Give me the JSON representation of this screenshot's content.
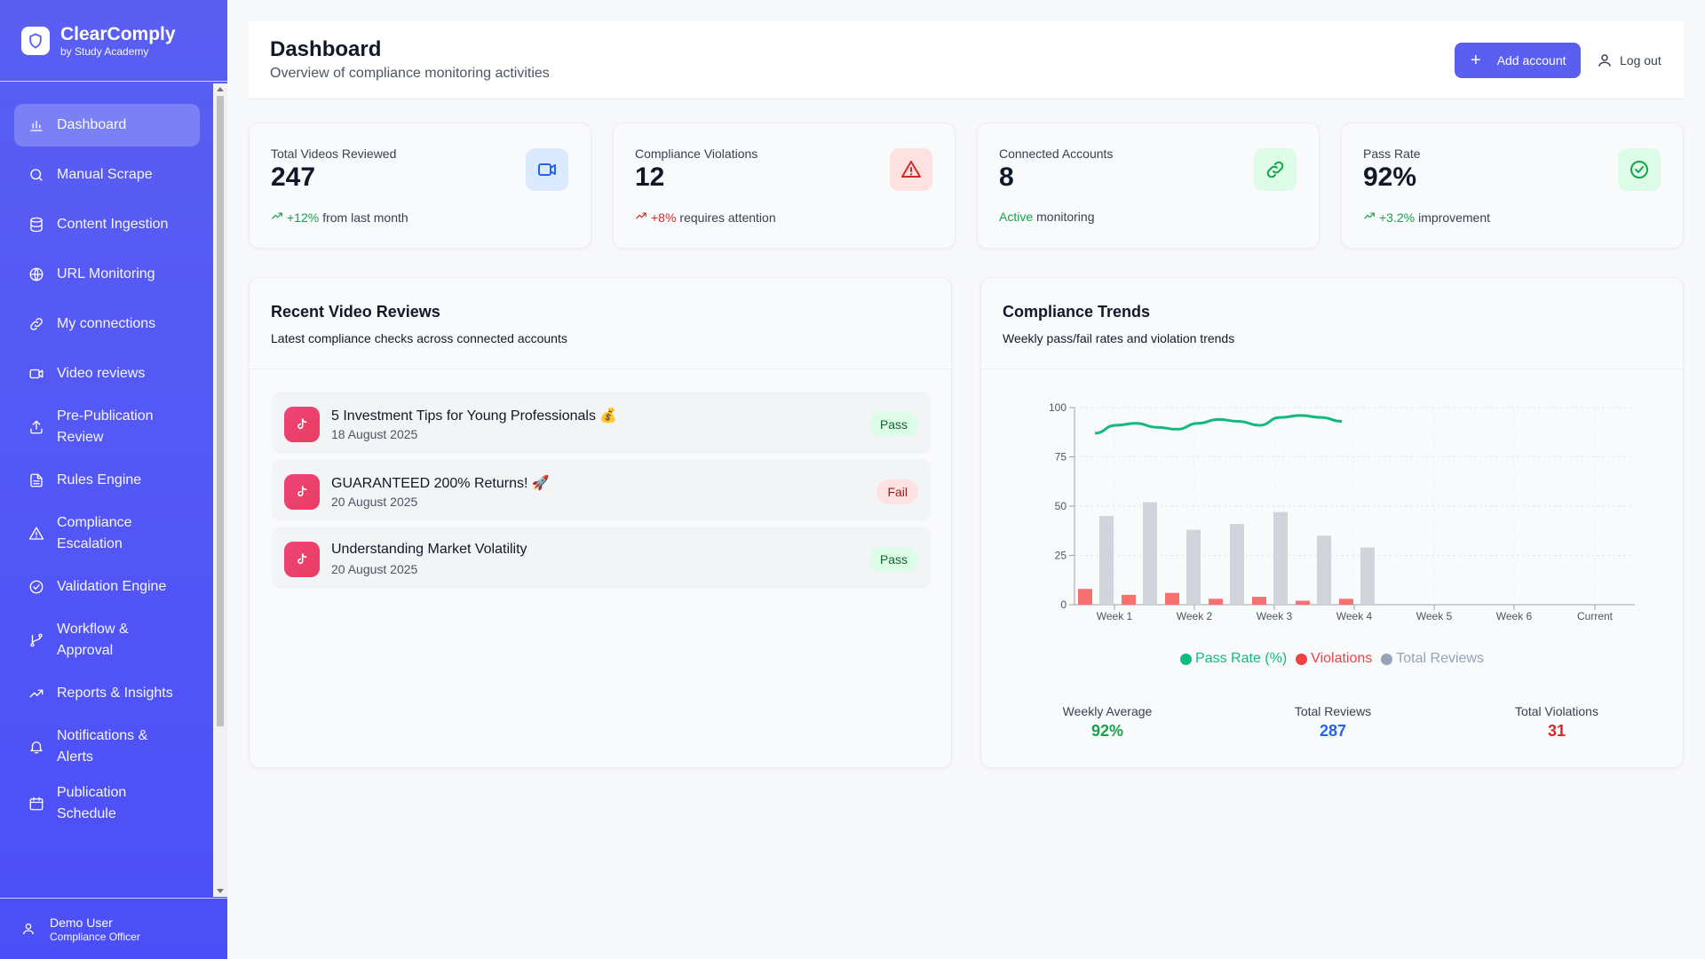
{
  "brand": {
    "name": "ClearComply",
    "sub": "by Study Academy"
  },
  "nav": [
    {
      "label": "Dashboard",
      "icon": "bar-chart-icon",
      "active": true
    },
    {
      "label": "Manual Scrape",
      "icon": "search-icon"
    },
    {
      "label": "Content Ingestion",
      "icon": "database-icon"
    },
    {
      "label": "URL Monitoring",
      "icon": "globe-icon"
    },
    {
      "label": "My connections",
      "icon": "link-icon"
    },
    {
      "label": "Video reviews",
      "icon": "video-icon"
    },
    {
      "label": "Pre-Publication Review",
      "icon": "upload-icon"
    },
    {
      "label": "Rules Engine",
      "icon": "file-text-icon"
    },
    {
      "label": "Compliance Escalation",
      "icon": "alert-triangle-icon"
    },
    {
      "label": "Validation Engine",
      "icon": "check-circle-icon"
    },
    {
      "label": "Workflow & Approval",
      "icon": "git-branch-icon"
    },
    {
      "label": "Reports & Insights",
      "icon": "trending-up-icon"
    },
    {
      "label": "Notifications & Alerts",
      "icon": "bell-icon"
    },
    {
      "label": "Publication Schedule",
      "icon": "calendar-icon"
    }
  ],
  "user": {
    "name": "Demo User",
    "role": "Compliance Officer"
  },
  "header": {
    "title": "Dashboard",
    "subtitle": "Overview of compliance monitoring activities",
    "add_label": "Add account",
    "logout_label": "Log out"
  },
  "stats": [
    {
      "label": "Total Videos Reviewed",
      "value": "247",
      "delta": "+12%",
      "foot": "from last month",
      "delta_color": "#16a34a",
      "icon": "video-icon",
      "icon_bg": "#dbeafe",
      "icon_color": "#2563eb"
    },
    {
      "label": "Compliance Violations",
      "value": "12",
      "delta": "+8%",
      "foot": "requires attention",
      "delta_color": "#dc2626",
      "icon": "alert-triangle-icon",
      "icon_bg": "#fee2e2",
      "icon_color": "#dc2626"
    },
    {
      "label": "Connected Accounts",
      "value": "8",
      "delta": "Active",
      "foot": "monitoring",
      "delta_color": "#16a34a",
      "icon": "link-icon",
      "icon_bg": "#dcfce7",
      "icon_color": "#16a34a"
    },
    {
      "label": "Pass Rate",
      "value": "92%",
      "delta": "+3.2%",
      "foot": "improvement",
      "delta_color": "#16a34a",
      "icon": "check-circle-icon",
      "icon_bg": "#dcfce7",
      "icon_color": "#16a34a"
    }
  ],
  "reviews": {
    "title": "Recent Video Reviews",
    "subtitle": "Latest compliance checks across connected accounts",
    "items": [
      {
        "title": "5 Investment Tips for Young Professionals 💰",
        "date": "18 August 2025",
        "status": "Pass"
      },
      {
        "title": "GUARANTEED 200% Returns! 🚀",
        "date": "20 August 2025",
        "status": "Fail"
      },
      {
        "title": "Understanding Market Volatility",
        "date": "20 August 2025",
        "status": "Pass"
      }
    ]
  },
  "trends": {
    "title": "Compliance Trends",
    "subtitle": "Weekly pass/fail rates and violation trends",
    "summary": [
      {
        "label": "Weekly Average",
        "value": "92%",
        "color": "#16a34a"
      },
      {
        "label": "Total Reviews",
        "value": "287",
        "color": "#2563eb"
      },
      {
        "label": "Total Violations",
        "value": "31",
        "color": "#dc2626"
      }
    ]
  },
  "chart_data": {
    "type": "bar",
    "categories": [
      "Week 1",
      "Week 2",
      "Week 3",
      "Week 4",
      "Week 5",
      "Week 6",
      "Current"
    ],
    "ylim": [
      0,
      100
    ],
    "yticks": [
      0,
      25,
      50,
      75,
      100
    ],
    "series": [
      {
        "name": "Pass Rate (%)",
        "type": "line",
        "color": "#10b981",
        "x": [
          0.2,
          0.45,
          0.6,
          0.9,
          1.1,
          1.35,
          1.6,
          1.85,
          2.05,
          2.3,
          2.6,
          2.85,
          3.0
        ],
        "values": [
          87,
          91,
          92,
          90,
          89,
          92,
          94,
          93,
          91,
          95,
          96,
          95,
          93
        ]
      },
      {
        "name": "Violations",
        "type": "bar",
        "color": "#f87171",
        "x": [
          0.25,
          0.8,
          1.3,
          1.8,
          2.3,
          2.8,
          3.3
        ],
        "values": [
          8,
          5,
          6,
          3,
          4,
          2,
          3
        ]
      },
      {
        "name": "Total Reviews",
        "type": "bar",
        "color": "#d1d5db",
        "x": [
          0.5,
          1.05,
          1.55,
          2.05,
          2.55,
          3.05,
          3.55
        ],
        "values": [
          45,
          52,
          38,
          41,
          47,
          35,
          29
        ]
      }
    ],
    "legend_colors": [
      "#10b981",
      "#ef4444",
      "#94a3b8"
    ],
    "grid": true,
    "legend": "bottom"
  }
}
